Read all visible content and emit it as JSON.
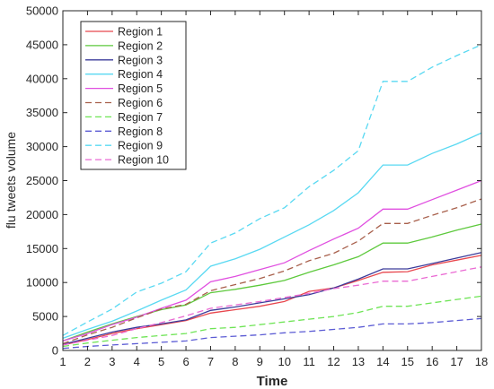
{
  "chart_data": {
    "type": "line",
    "title": "",
    "xlabel": "Time",
    "ylabel": "flu tweets volume",
    "xlim": [
      1,
      18
    ],
    "ylim": [
      0,
      50000
    ],
    "xticks": [
      "1",
      "2",
      "3",
      "4",
      "5",
      "6",
      "7",
      "8",
      "9",
      "10",
      "11",
      "12",
      "13",
      "14",
      "15",
      "16",
      "17",
      "18"
    ],
    "yticks": [
      "0",
      "5000",
      "10000",
      "15000",
      "20000",
      "25000",
      "30000",
      "35000",
      "40000",
      "45000",
      "50000"
    ],
    "x": [
      1,
      2,
      3,
      4,
      5,
      6,
      7,
      8,
      9,
      10,
      11,
      12,
      13,
      14,
      15,
      16,
      17,
      18
    ],
    "legend_position": "top-left",
    "grid": false,
    "series": [
      {
        "name": "Region 1",
        "color": "#e8474e",
        "dash": "solid",
        "values": [
          800,
          1600,
          2500,
          3200,
          3800,
          4400,
          5500,
          6000,
          6500,
          7200,
          8700,
          9200,
          10300,
          11500,
          11600,
          12600,
          13300,
          14000
        ]
      },
      {
        "name": "Region 2",
        "color": "#5dc93c",
        "dash": "solid",
        "values": [
          1400,
          2700,
          3900,
          5000,
          6000,
          6700,
          8500,
          9000,
          9600,
          10300,
          11500,
          12600,
          13800,
          15800,
          15800,
          16700,
          17700,
          18600
        ]
      },
      {
        "name": "Region 3",
        "color": "#3c3c9b",
        "dash": "solid",
        "values": [
          900,
          1800,
          2700,
          3400,
          3900,
          4500,
          5900,
          6400,
          7000,
          7600,
          8200,
          9200,
          10500,
          12000,
          12000,
          12800,
          13600,
          14400
        ]
      },
      {
        "name": "Region 4",
        "color": "#59d9f2",
        "dash": "solid",
        "values": [
          1800,
          3100,
          4300,
          5800,
          7400,
          8900,
          12400,
          13500,
          14900,
          16700,
          18500,
          20600,
          23200,
          27300,
          27300,
          29000,
          30400,
          32000
        ]
      },
      {
        "name": "Region 5",
        "color": "#e04fe0",
        "dash": "solid",
        "values": [
          1400,
          2500,
          3800,
          4900,
          6200,
          7400,
          10100,
          10900,
          11900,
          12900,
          14700,
          16400,
          18000,
          20800,
          20800,
          22200,
          23600,
          25000
        ]
      },
      {
        "name": "Region 6",
        "color": "#a8604c",
        "dash": "dashed",
        "values": [
          1000,
          2300,
          3400,
          4800,
          6100,
          6800,
          8800,
          9700,
          10600,
          11700,
          13200,
          14300,
          16100,
          18700,
          18700,
          19900,
          21000,
          22300
        ]
      },
      {
        "name": "Region 7",
        "color": "#6ee455",
        "dash": "dashed",
        "values": [
          600,
          1100,
          1500,
          1900,
          2200,
          2500,
          3200,
          3400,
          3800,
          4200,
          4600,
          5000,
          5600,
          6500,
          6500,
          7000,
          7500,
          8000
        ]
      },
      {
        "name": "Region 8",
        "color": "#5b5bd4",
        "dash": "dashed",
        "values": [
          300,
          600,
          800,
          1000,
          1200,
          1400,
          1900,
          2100,
          2300,
          2600,
          2800,
          3100,
          3400,
          3900,
          3900,
          4100,
          4400,
          4700
        ]
      },
      {
        "name": "Region 9",
        "color": "#59d9f2",
        "dash": "dashed",
        "values": [
          2200,
          4200,
          6100,
          8600,
          9900,
          11600,
          15800,
          17300,
          19400,
          21000,
          24100,
          26500,
          29400,
          39600,
          39600,
          41700,
          43400,
          45000
        ]
      },
      {
        "name": "Region 10",
        "color": "#ea6ad3",
        "dash": "dashed",
        "values": [
          800,
          1500,
          2200,
          3200,
          4100,
          5100,
          6200,
          6700,
          7200,
          7800,
          8400,
          9100,
          9600,
          10200,
          10200,
          10900,
          11600,
          12300
        ]
      }
    ]
  }
}
